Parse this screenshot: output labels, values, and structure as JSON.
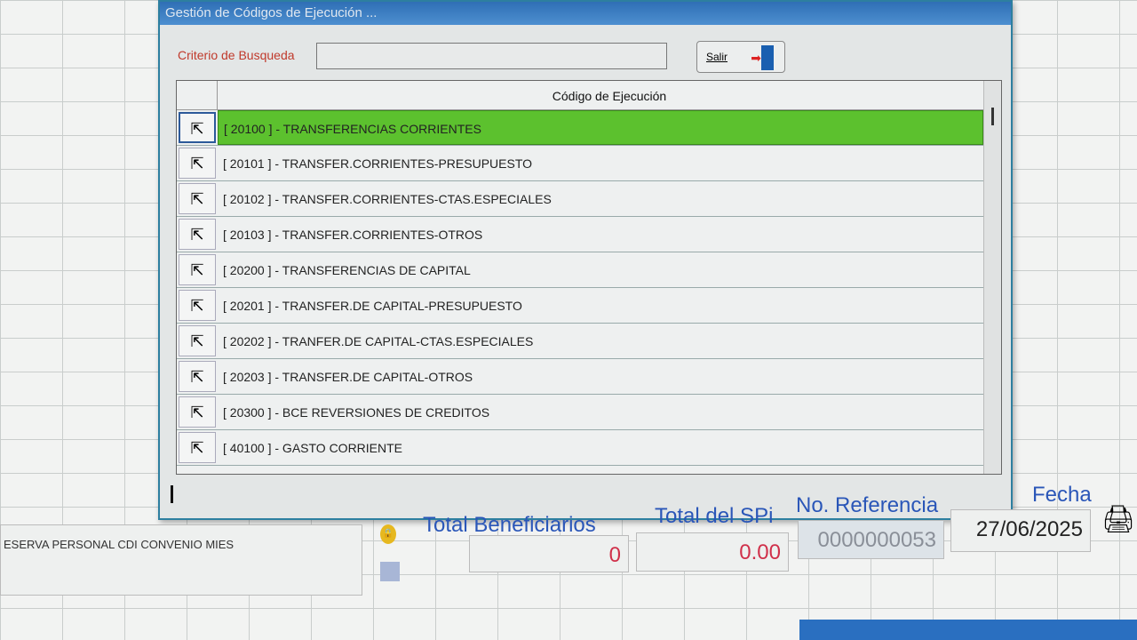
{
  "dialog": {
    "title": "Gestión de Códigos de Ejecución ...",
    "search_label": "Criterio de Busqueda",
    "search_value": "",
    "exit_label": "Salir",
    "column_header": "Código de Ejecución",
    "rows": [
      "[ 20100 ] - TRANSFERENCIAS CORRIENTES",
      "[ 20101 ] - TRANSFER.CORRIENTES-PRESUPUESTO",
      "[ 20102 ] - TRANSFER.CORRIENTES-CTAS.ESPECIALES",
      "[ 20103 ] - TRANSFER.CORRIENTES-OTROS",
      "[ 20200 ] - TRANSFERENCIAS DE CAPITAL",
      "[ 20201 ] - TRANSFER.DE CAPITAL-PRESUPUESTO",
      "[ 20202 ] - TRANFER.DE CAPITAL-CTAS.ESPECIALES",
      "[ 20203 ] - TRANSFER.DE CAPITAL-OTROS",
      "[ 20300 ] - BCE REVERSIONES DE CREDITOS",
      "[ 40100 ] - GASTO CORRIENTE"
    ],
    "selected_row_color": "#5cc12e"
  },
  "footer": {
    "description": "ESERVA PERSONAL CDI CONVENIO MIES",
    "total_beneficiarios_label": "Total Beneficiarios",
    "total_beneficiarios": "0",
    "total_spi_label": "Total del SPi",
    "total_spi": "0.00",
    "referencia_label": "No. Referencia",
    "referencia": "0000000053",
    "fecha_label": "Fecha",
    "fecha": "27/06/2025"
  }
}
